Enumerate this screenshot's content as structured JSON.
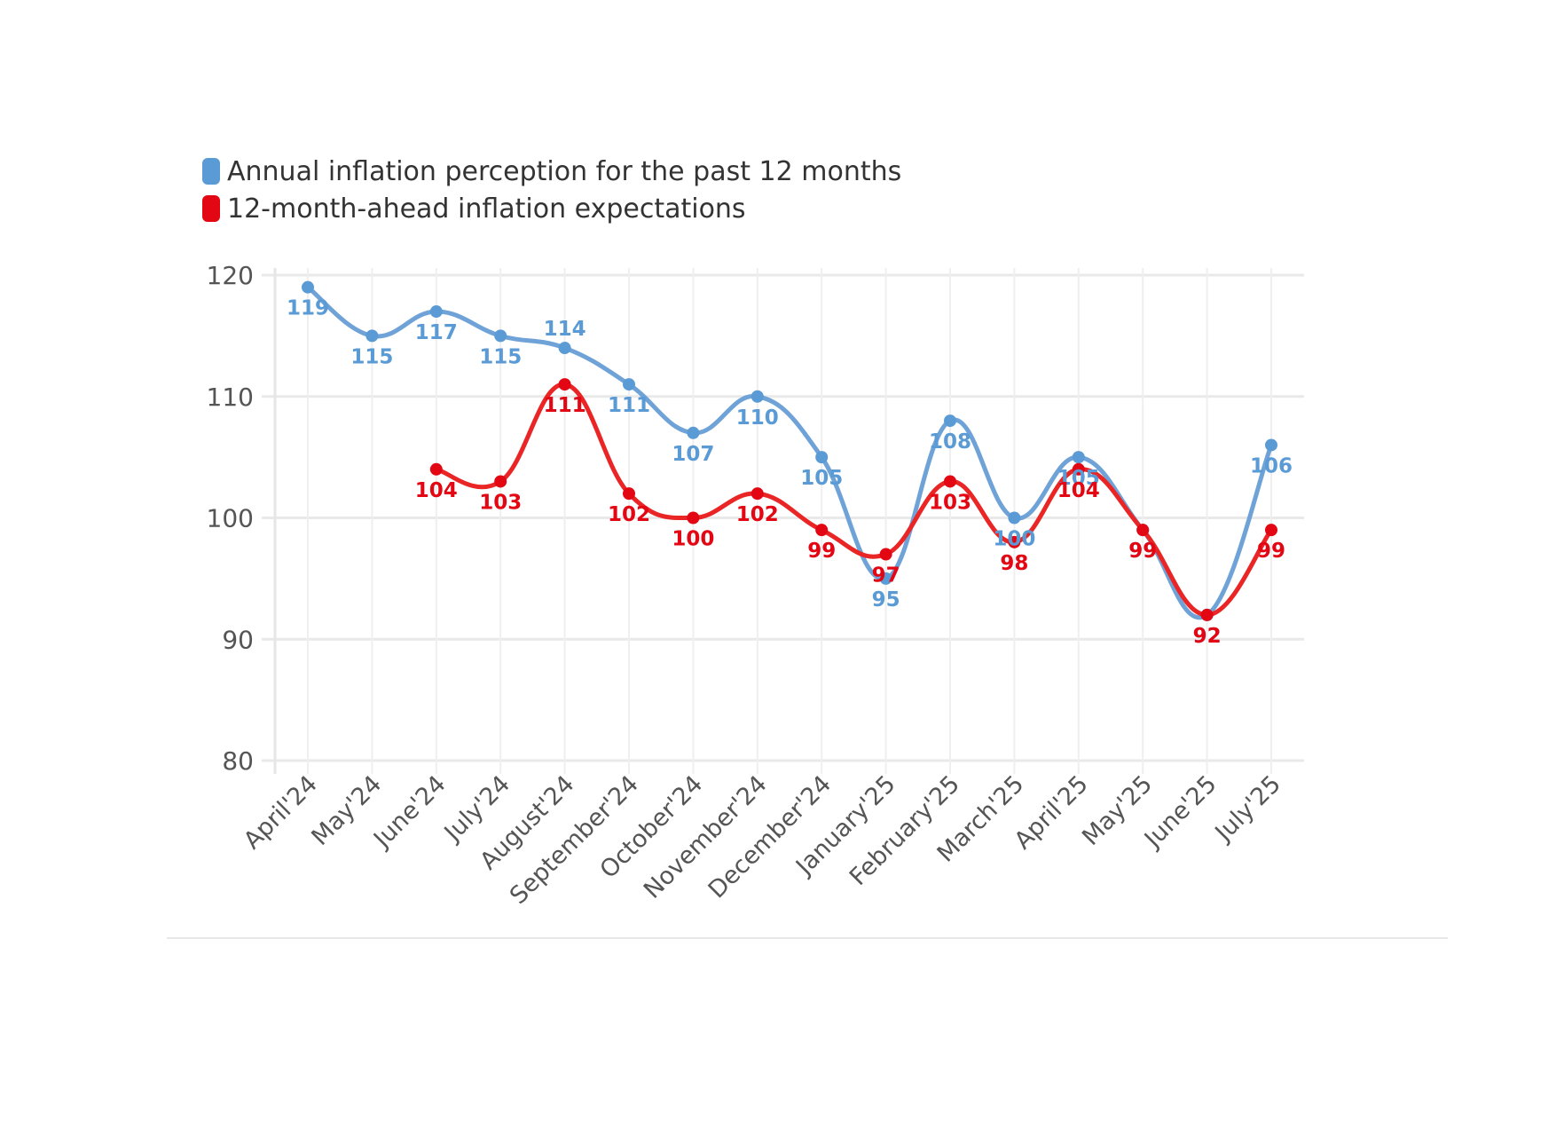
{
  "chart_data": {
    "type": "line",
    "title": "",
    "xlabel": "",
    "ylabel": "",
    "categories": [
      "April'24",
      "May'24",
      "June'24",
      "July'24",
      "August'24",
      "September'24",
      "October'24",
      "November'24",
      "December'24",
      "January'25",
      "February'25",
      "March'25",
      "April'25",
      "May'25",
      "June'25",
      "July'25"
    ],
    "ylim": [
      80,
      120
    ],
    "yticks": [
      80,
      90,
      100,
      110,
      120
    ],
    "grid": true,
    "legend_position": "top-left",
    "series": [
      {
        "name": "Annual inflation perception for the past 12 months",
        "color": "#6fa3d8",
        "label_color": "#5b9bd5",
        "values": [
          119,
          115,
          117,
          115,
          114,
          111,
          107,
          110,
          105,
          95,
          108,
          100,
          105,
          99,
          92,
          106
        ]
      },
      {
        "name": "12-month-ahead inflation expectations",
        "color": "#ea2525",
        "label_color": "#e30613",
        "values": [
          null,
          null,
          104,
          103,
          111,
          102,
          100,
          102,
          99,
          97,
          103,
          98,
          104,
          99,
          92,
          99
        ]
      }
    ]
  }
}
